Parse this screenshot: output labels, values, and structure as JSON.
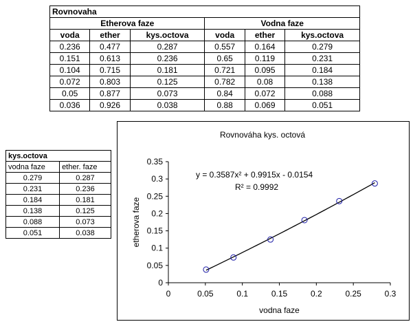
{
  "eq_table": {
    "title": "Rovnovaha",
    "groups": [
      "Etherova faze",
      "Vodna faze"
    ],
    "columns": [
      "voda",
      "ether",
      "kys.octova",
      "voda",
      "ether",
      "kys.octova"
    ],
    "rows": [
      [
        "0.236",
        "0.477",
        "0.287",
        "0.557",
        "0.164",
        "0.279"
      ],
      [
        "0.151",
        "0.613",
        "0.236",
        "0.65",
        "0.119",
        "0.231"
      ],
      [
        "0.104",
        "0.715",
        "0.181",
        "0.721",
        "0.095",
        "0.184"
      ],
      [
        "0.072",
        "0.803",
        "0.125",
        "0.782",
        "0.08",
        "0.138"
      ],
      [
        "0.05",
        "0.877",
        "0.073",
        "0.84",
        "0.072",
        "0.088"
      ],
      [
        "0.036",
        "0.926",
        "0.038",
        "0.88",
        "0.069",
        "0.051"
      ]
    ]
  },
  "acid_table": {
    "title": "kys.octova",
    "columns": [
      "vodna faze",
      "ether. faze"
    ],
    "rows": [
      [
        "0.279",
        "0.287"
      ],
      [
        "0.231",
        "0.236"
      ],
      [
        "0.184",
        "0.181"
      ],
      [
        "0.138",
        "0.125"
      ],
      [
        "0.088",
        "0.073"
      ],
      [
        "0.051",
        "0.038"
      ]
    ]
  },
  "chart_data": {
    "type": "scatter",
    "title": "Rovnováha kys. octová",
    "xlabel": "vodna faze",
    "ylabel": "etherova faze",
    "xlim": [
      0,
      0.3
    ],
    "ylim": [
      0,
      0.35
    ],
    "xticks": [
      "0",
      "0.05",
      "0.1",
      "0.15",
      "0.2",
      "0.25",
      "0.3"
    ],
    "yticks": [
      "0",
      "0.05",
      "0.1",
      "0.15",
      "0.2",
      "0.25",
      "0.3",
      "0.35"
    ],
    "x": [
      0.279,
      0.231,
      0.184,
      0.138,
      0.088,
      0.051
    ],
    "y": [
      0.287,
      0.236,
      0.181,
      0.125,
      0.073,
      0.038
    ],
    "trendline": {
      "type": "polynomial",
      "a": 0.3587,
      "b": 0.9915,
      "c": -0.0154,
      "x_range": [
        0.051,
        0.279
      ]
    },
    "equation": "y = 0.3587x² + 0.9915x - 0.0154",
    "r2": "R² = 0.9992",
    "legend": "none",
    "grid": false
  }
}
